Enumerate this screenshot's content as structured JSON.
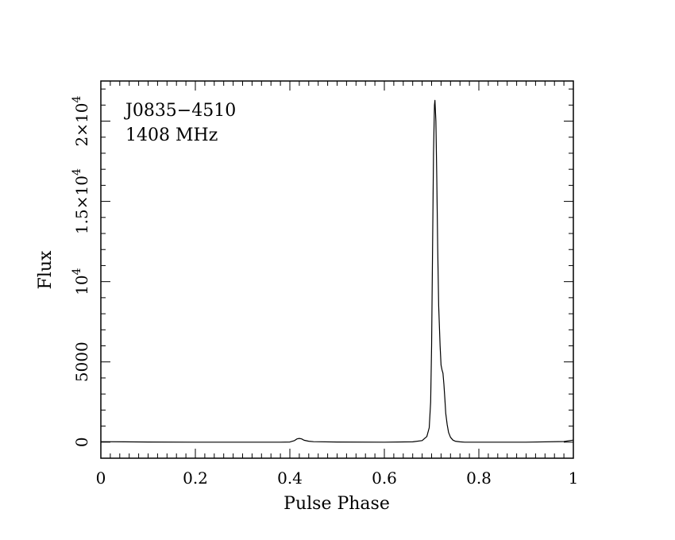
{
  "chart_data": {
    "type": "line",
    "title": "",
    "xlabel": "Pulse Phase",
    "ylabel": "Flux",
    "xlim": [
      0,
      1
    ],
    "ylim": [
      -1000,
      22500
    ],
    "grid": false,
    "annotations": [
      "J0835−4510",
      "1408 MHz"
    ],
    "x_ticks": [
      {
        "value": 0,
        "label": "0"
      },
      {
        "value": 0.2,
        "label": "0.2"
      },
      {
        "value": 0.4,
        "label": "0.4"
      },
      {
        "value": 0.6,
        "label": "0.6"
      },
      {
        "value": 0.8,
        "label": "0.8"
      },
      {
        "value": 1,
        "label": "1"
      }
    ],
    "y_ticks": [
      {
        "value": 0,
        "base": "0",
        "exp": ""
      },
      {
        "value": 5000,
        "base": "5000",
        "exp": ""
      },
      {
        "value": 10000,
        "base": "10",
        "exp": "4"
      },
      {
        "value": 15000,
        "base": "1.5×10",
        "exp": "4"
      },
      {
        "value": 20000,
        "base": "2×10",
        "exp": "4"
      }
    ],
    "series": [
      {
        "x": [
          0,
          0.05,
          0.1,
          0.2,
          0.3,
          0.38,
          0.4,
          0.41,
          0.415,
          0.42,
          0.425,
          0.43,
          0.44,
          0.45,
          0.5,
          0.6,
          0.66,
          0.68,
          0.69,
          0.695,
          0.698,
          0.7,
          0.702,
          0.704,
          0.706,
          0.707,
          0.709,
          0.711,
          0.713,
          0.715,
          0.718,
          0.72,
          0.722,
          0.724,
          0.726,
          0.728,
          0.73,
          0.733,
          0.736,
          0.74,
          0.745,
          0.75,
          0.76,
          0.77,
          0.8,
          0.9,
          0.98,
          1.0
        ],
        "values": [
          30,
          20,
          10,
          0,
          0,
          0,
          10,
          100,
          200,
          230,
          200,
          120,
          60,
          30,
          10,
          0,
          20,
          100,
          350,
          900,
          2500,
          6000,
          12000,
          18000,
          21000,
          21300,
          20000,
          16500,
          12000,
          8500,
          6000,
          4800,
          4500,
          4300,
          3600,
          2700,
          1800,
          1100,
          600,
          300,
          130,
          60,
          20,
          0,
          0,
          0,
          40,
          130
        ]
      }
    ]
  }
}
